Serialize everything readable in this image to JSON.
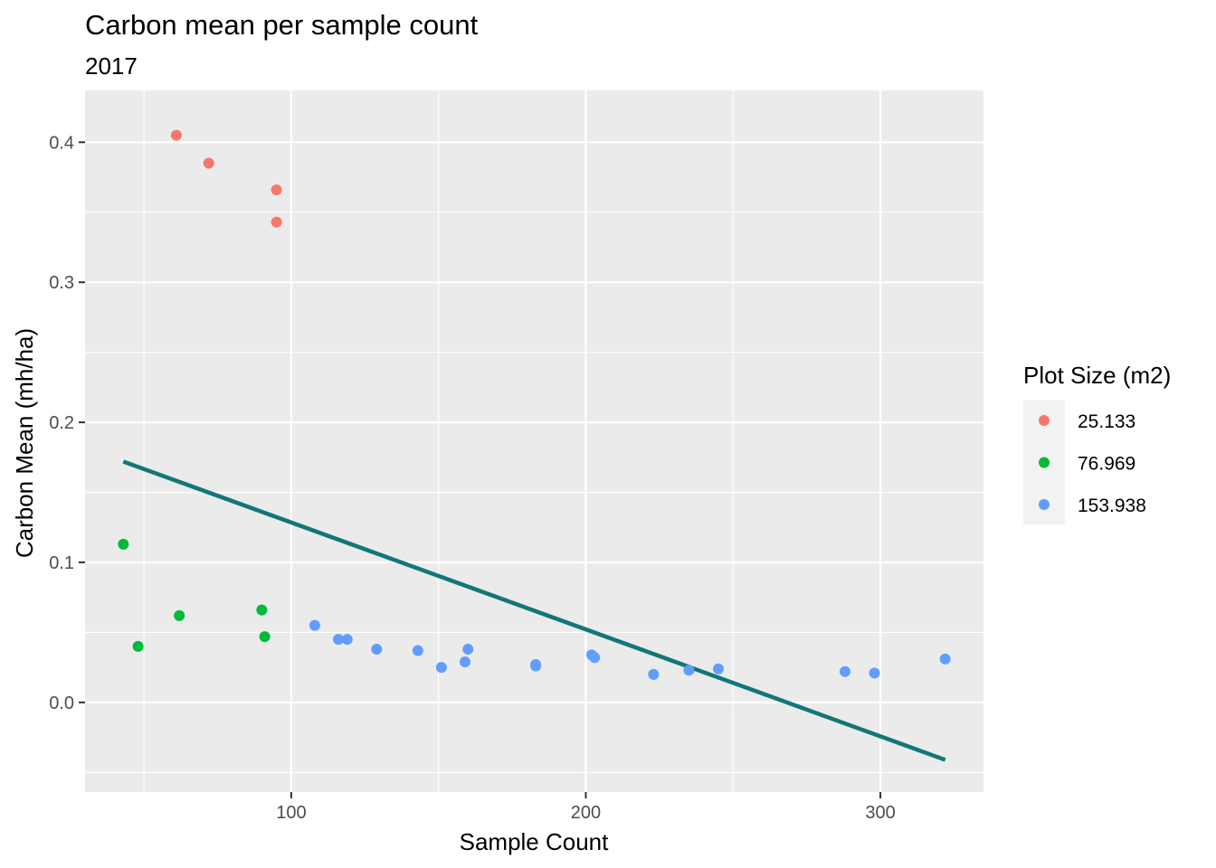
{
  "chart_data": {
    "type": "scatter",
    "title": "Carbon mean per sample count",
    "subtitle": "2017",
    "xlabel": "Sample Count",
    "ylabel": "Carbon Mean (mh/ha)",
    "xlim": [
      30,
      335
    ],
    "ylim": [
      -0.064,
      0.437
    ],
    "x_ticks": [
      100,
      200,
      300
    ],
    "y_ticks": [
      0.0,
      0.1,
      0.2,
      0.3,
      0.4
    ],
    "x_tick_labels": [
      "100",
      "200",
      "300"
    ],
    "y_tick_labels": [
      "0.0",
      "0.1",
      "0.2",
      "0.3",
      "0.4"
    ],
    "grid": true,
    "legend": {
      "title": "Plot Size (m2)",
      "placement": "right"
    },
    "series": [
      {
        "name": "25.133",
        "color": "#F8766D",
        "points": [
          {
            "x": 61,
            "y": 0.405
          },
          {
            "x": 72,
            "y": 0.385
          },
          {
            "x": 95,
            "y": 0.366
          },
          {
            "x": 95,
            "y": 0.343
          }
        ]
      },
      {
        "name": "76.969",
        "color": "#00BA38",
        "points": [
          {
            "x": 43,
            "y": 0.113
          },
          {
            "x": 48,
            "y": 0.04
          },
          {
            "x": 62,
            "y": 0.062
          },
          {
            "x": 90,
            "y": 0.066
          },
          {
            "x": 91,
            "y": 0.047
          }
        ]
      },
      {
        "name": "153.938",
        "color": "#619CFF",
        "points": [
          {
            "x": 108,
            "y": 0.055
          },
          {
            "x": 116,
            "y": 0.045
          },
          {
            "x": 119,
            "y": 0.045
          },
          {
            "x": 129,
            "y": 0.038
          },
          {
            "x": 143,
            "y": 0.037
          },
          {
            "x": 151,
            "y": 0.025
          },
          {
            "x": 159,
            "y": 0.029
          },
          {
            "x": 160,
            "y": 0.038
          },
          {
            "x": 183,
            "y": 0.026
          },
          {
            "x": 183,
            "y": 0.027
          },
          {
            "x": 202,
            "y": 0.034
          },
          {
            "x": 203,
            "y": 0.032
          },
          {
            "x": 223,
            "y": 0.02
          },
          {
            "x": 235,
            "y": 0.023
          },
          {
            "x": 245,
            "y": 0.024
          },
          {
            "x": 288,
            "y": 0.022
          },
          {
            "x": 298,
            "y": 0.021
          },
          {
            "x": 322,
            "y": 0.031
          }
        ]
      }
    ],
    "trend_line": {
      "color": "#117777",
      "points": [
        {
          "x": 43,
          "y": 0.172
        },
        {
          "x": 322,
          "y": -0.041
        }
      ]
    }
  }
}
